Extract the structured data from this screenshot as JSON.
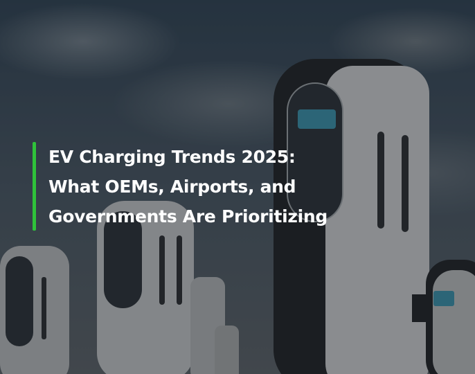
{
  "hero": {
    "title_lines": [
      "EV Charging Trends 2025:",
      "What OEMs, Airports, and",
      "Governments Are Prioritizing"
    ],
    "accent_color": "#2fc23a",
    "background": "ev-charging-stations-photo"
  }
}
